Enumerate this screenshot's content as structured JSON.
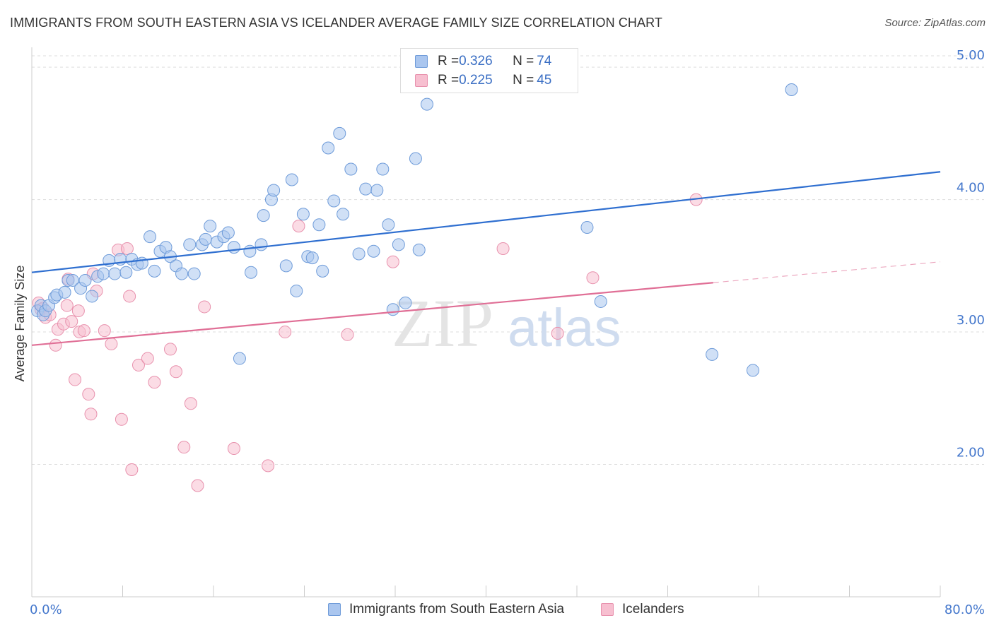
{
  "title": "IMMIGRANTS FROM SOUTH EASTERN ASIA VS ICELANDER AVERAGE FAMILY SIZE CORRELATION CHART",
  "source": "Source: ZipAtlas.com",
  "legend": {
    "rows": [
      {
        "r_label": "R = ",
        "r_value": "0.326",
        "n_label": "N = ",
        "n_value": "74"
      },
      {
        "r_label": "R = ",
        "r_value": "0.225",
        "n_label": "N = ",
        "n_value": "45"
      }
    ]
  },
  "colors": {
    "blue_fill": "#aac6ef",
    "blue_stroke": "#6e9bd9",
    "blue_line": "#2f6fd0",
    "pink_fill": "#f7bfd0",
    "pink_stroke": "#e891ad",
    "pink_line": "#e06f96",
    "tick_text": "#4477cc"
  },
  "chart_data": {
    "type": "scatter",
    "xlabel": "",
    "ylabel": "Average Family Size",
    "xlim": [
      0,
      80
    ],
    "ylim": [
      1.0,
      5.15
    ],
    "x_tick_labels": [
      "0.0%",
      "80.0%"
    ],
    "y_ticks": [
      2.0,
      3.0,
      4.0,
      5.0
    ],
    "y_tick_labels": [
      "2.00",
      "3.00",
      "4.00",
      "5.00"
    ],
    "grid": true,
    "legend_position": "top-center",
    "series": [
      {
        "name": "Immigrants from South Eastern Asia",
        "color": "#aac6ef",
        "trend": {
          "x": [
            0,
            80
          ],
          "y": [
            3.45,
            4.21
          ],
          "dashed_from": null
        },
        "points": [
          [
            0.5,
            3.16
          ],
          [
            0.8,
            3.2
          ],
          [
            1.0,
            3.13
          ],
          [
            1.2,
            3.16
          ],
          [
            1.5,
            3.2
          ],
          [
            2.0,
            3.26
          ],
          [
            2.2,
            3.28
          ],
          [
            2.9,
            3.3
          ],
          [
            3.2,
            3.39
          ],
          [
            3.6,
            3.39
          ],
          [
            4.3,
            3.33
          ],
          [
            4.7,
            3.39
          ],
          [
            5.3,
            3.27
          ],
          [
            5.8,
            3.42
          ],
          [
            6.3,
            3.44
          ],
          [
            6.8,
            3.54
          ],
          [
            7.3,
            3.44
          ],
          [
            7.8,
            3.55
          ],
          [
            8.3,
            3.45
          ],
          [
            8.8,
            3.55
          ],
          [
            9.3,
            3.51
          ],
          [
            9.7,
            3.52
          ],
          [
            10.4,
            3.72
          ],
          [
            10.8,
            3.46
          ],
          [
            11.3,
            3.61
          ],
          [
            11.8,
            3.64
          ],
          [
            12.2,
            3.57
          ],
          [
            12.7,
            3.5
          ],
          [
            13.2,
            3.44
          ],
          [
            13.9,
            3.66
          ],
          [
            14.3,
            3.44
          ],
          [
            15.0,
            3.66
          ],
          [
            15.3,
            3.7
          ],
          [
            15.7,
            3.8
          ],
          [
            16.3,
            3.68
          ],
          [
            16.9,
            3.72
          ],
          [
            17.3,
            3.75
          ],
          [
            17.8,
            3.64
          ],
          [
            18.3,
            2.8
          ],
          [
            19.2,
            3.61
          ],
          [
            19.3,
            3.45
          ],
          [
            20.2,
            3.66
          ],
          [
            20.4,
            3.88
          ],
          [
            21.1,
            4.0
          ],
          [
            21.3,
            4.07
          ],
          [
            22.4,
            3.5
          ],
          [
            22.9,
            4.15
          ],
          [
            23.3,
            3.31
          ],
          [
            23.9,
            3.89
          ],
          [
            24.3,
            3.57
          ],
          [
            24.7,
            3.56
          ],
          [
            25.3,
            3.81
          ],
          [
            25.6,
            3.46
          ],
          [
            26.1,
            4.39
          ],
          [
            26.6,
            3.99
          ],
          [
            27.1,
            4.5
          ],
          [
            27.4,
            3.89
          ],
          [
            28.1,
            4.23
          ],
          [
            28.8,
            3.59
          ],
          [
            29.4,
            4.08
          ],
          [
            30.1,
            3.61
          ],
          [
            30.4,
            4.07
          ],
          [
            30.9,
            4.23
          ],
          [
            31.4,
            3.81
          ],
          [
            31.8,
            3.17
          ],
          [
            32.3,
            3.66
          ],
          [
            32.9,
            3.22
          ],
          [
            33.8,
            4.31
          ],
          [
            34.1,
            3.62
          ],
          [
            34.8,
            4.72
          ],
          [
            48.9,
            3.79
          ],
          [
            50.1,
            3.23
          ],
          [
            59.9,
            2.83
          ],
          [
            63.5,
            2.71
          ],
          [
            66.9,
            4.83
          ]
        ]
      },
      {
        "name": "Icelanders",
        "color": "#f7bfd0",
        "trend": {
          "x": [
            0,
            80
          ],
          "y": [
            2.9,
            3.53
          ],
          "dashed_from": 60
        },
        "points": [
          [
            0.6,
            3.22
          ],
          [
            0.8,
            3.17
          ],
          [
            1.0,
            3.18
          ],
          [
            1.2,
            3.11
          ],
          [
            1.6,
            3.13
          ],
          [
            2.1,
            2.9
          ],
          [
            2.3,
            3.02
          ],
          [
            2.8,
            3.06
          ],
          [
            3.1,
            3.2
          ],
          [
            3.2,
            3.4
          ],
          [
            3.5,
            3.08
          ],
          [
            3.8,
            2.64
          ],
          [
            4.1,
            3.16
          ],
          [
            4.2,
            3.0
          ],
          [
            4.6,
            3.01
          ],
          [
            5.0,
            2.53
          ],
          [
            5.2,
            2.38
          ],
          [
            5.4,
            3.44
          ],
          [
            5.7,
            3.31
          ],
          [
            6.4,
            3.01
          ],
          [
            7.0,
            2.91
          ],
          [
            7.6,
            3.62
          ],
          [
            7.9,
            2.34
          ],
          [
            8.4,
            3.63
          ],
          [
            8.6,
            3.27
          ],
          [
            8.8,
            1.96
          ],
          [
            9.4,
            2.75
          ],
          [
            10.2,
            2.8
          ],
          [
            10.8,
            2.62
          ],
          [
            12.2,
            2.87
          ],
          [
            12.7,
            2.7
          ],
          [
            13.4,
            2.13
          ],
          [
            14.0,
            2.46
          ],
          [
            14.6,
            1.84
          ],
          [
            15.2,
            3.19
          ],
          [
            17.8,
            2.12
          ],
          [
            20.8,
            1.99
          ],
          [
            22.3,
            3.0
          ],
          [
            23.5,
            3.8
          ],
          [
            27.8,
            2.98
          ],
          [
            31.8,
            3.53
          ],
          [
            41.5,
            3.63
          ],
          [
            46.3,
            2.99
          ],
          [
            49.4,
            3.41
          ],
          [
            58.5,
            4.0
          ]
        ]
      }
    ]
  },
  "bottom_legend": [
    {
      "label": "Immigrants from South Eastern Asia"
    },
    {
      "label": "Icelanders"
    }
  ],
  "watermark": {
    "part1": "ZIP",
    "part2": "atlas"
  }
}
